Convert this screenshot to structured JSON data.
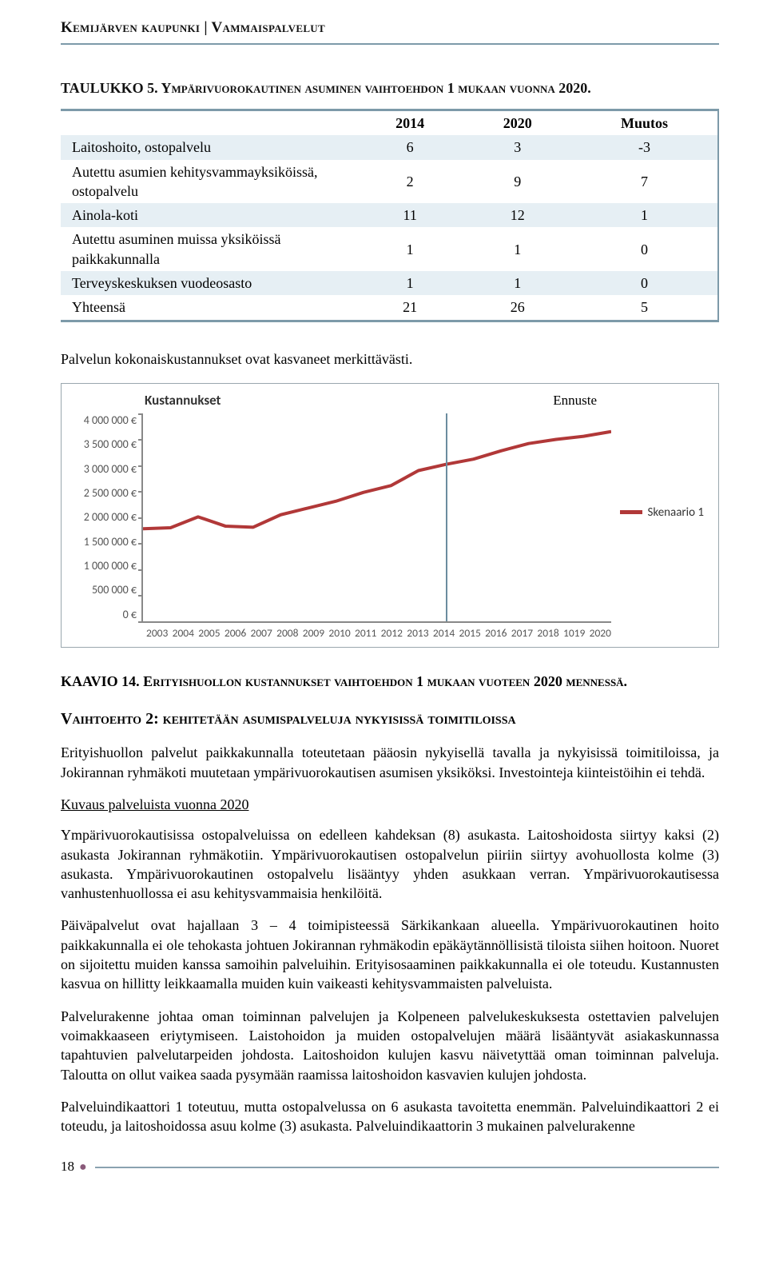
{
  "header": "Kemijärven kaupunki | Vammaispalvelut",
  "taulukko_title": "TAULUKKO 5. Ympärivuorokautinen asuminen vaihtoehdon 1 mukaan vuonna 2020.",
  "table": {
    "cols": [
      "",
      "2014",
      "2020",
      "Muutos"
    ],
    "rows": [
      {
        "label": "Laitoshoito, ostopalvelu",
        "c": [
          "6",
          "3",
          "-3"
        ],
        "band": true
      },
      {
        "label": "Autettu asumien kehitysvammayksiköissä, ostopalvelu",
        "c": [
          "2",
          "9",
          "7"
        ],
        "band": false
      },
      {
        "label": "Ainola-koti",
        "c": [
          "11",
          "12",
          "1"
        ],
        "band": true
      },
      {
        "label": "Autettu asuminen muissa yksiköissä paikkakunnalla",
        "c": [
          "1",
          "1",
          "0"
        ],
        "band": false
      },
      {
        "label": "Terveyskeskuksen vuodeosasto",
        "c": [
          "1",
          "1",
          "0"
        ],
        "band": true
      },
      {
        "label": "Yhteensä",
        "c": [
          "21",
          "26",
          "5"
        ],
        "band": false
      }
    ]
  },
  "para1": "Palvelun kokonaiskustannukset ovat kasvaneet merkittävästi.",
  "chart": {
    "title": "Kustannukset",
    "ennuste_label": "Ennuste",
    "legend_label": "Skenaario 1",
    "series_color": "#b13838",
    "ennuste_color": "#6b8c9f",
    "axis_color": "#888888",
    "ymax": 4000000,
    "ymin": 0,
    "ystep": 500000,
    "yticks": [
      "4 000 000 €",
      "3 500 000 €",
      "3 000 000 €",
      "2 500 000 €",
      "2 000 000 €",
      "1 500 000 €",
      "1 000 000 €",
      "500 000 €",
      "0 €"
    ],
    "xticks": [
      "2003",
      "2004",
      "2005",
      "2006",
      "2007",
      "2008",
      "2009",
      "2010",
      "2011",
      "2012",
      "2013",
      "2014",
      "2015",
      "2016",
      "2017",
      "2018",
      "1019",
      "2020"
    ],
    "values": [
      1780000,
      1800000,
      2010000,
      1830000,
      1810000,
      2050000,
      2180000,
      2310000,
      2480000,
      2610000,
      2900000,
      3020000,
      3120000,
      3280000,
      3420000,
      3500000,
      3560000,
      3650000
    ],
    "ennuste_x_index": 11
  },
  "kaavio_title": "KAAVIO 14. Erityishuollon kustannukset vaihtoehdon 1 mukaan vuoteen 2020 mennessä.",
  "vaihto_title": "Vaihtoehto 2: kehitetään asumispalveluja nykyisissä toimitiloissa",
  "body": {
    "p1": "Erityishuollon palvelut paikkakunnalla toteutetaan pääosin nykyisellä tavalla ja nykyisissä toimitiloissa, ja Jokirannan ryhmäkoti muutetaan ympärivuorokautisen asumisen yksiköksi. Investointeja kiinteistöihin ei tehdä.",
    "sub": "Kuvaus palveluista vuonna 2020",
    "p2": "Ympärivuorokautisissa ostopalveluissa on edelleen kahdeksan (8) asukasta. Laitoshoidosta siirtyy kaksi (2) asukasta Jokirannan ryhmäkotiin. Ympärivuorokautisen ostopalvelun piiriin siirtyy avohuollosta kolme (3) asukasta. Ympärivuorokautinen ostopalvelu lisääntyy yhden asukkaan verran. Ympärivuorokautisessa vanhustenhuollossa ei asu kehitysvammaisia henkilöitä.",
    "p3": "Päiväpalvelut ovat hajallaan 3 – 4 toimipisteessä Särkikankaan alueella. Ympärivuorokautinen hoito paikkakunnalla ei ole tehokasta johtuen Jokirannan ryhmäkodin epäkäytännöllisistä tiloista siihen hoitoon. Nuoret on sijoitettu muiden kanssa samoihin palveluihin. Erityisosaaminen paikkakunnalla ei ole toteudu. Kustannusten kasvua on hillitty leikkaamalla muiden kuin vaikeasti kehitysvammaisten palveluista.",
    "p4": "Palvelurakenne johtaa oman toiminnan palvelujen ja Kolpeneen palvelukeskuksesta ostettavien palvelujen voimakkaaseen eriytymiseen. Laistohoidon ja muiden ostopalvelujen määrä lisääntyvät asiakaskunnassa tapahtuvien palvelutarpeiden johdosta. Laitoshoidon kulujen kasvu näivetyttää oman toiminnan palveluja. Taloutta on ollut vaikea saada pysymään raamissa laitoshoidon kasvavien kulujen johdosta.",
    "p5": "Palveluindikaattori 1 toteutuu, mutta ostopalvelussa on 6 asukasta tavoitetta enemmän. Palveluindikaattori 2 ei toteudu, ja laitoshoidossa asuu kolme (3) asukasta. Palveluindikaattorin 3 mukainen palvelurakenne"
  },
  "page_number": "18"
}
